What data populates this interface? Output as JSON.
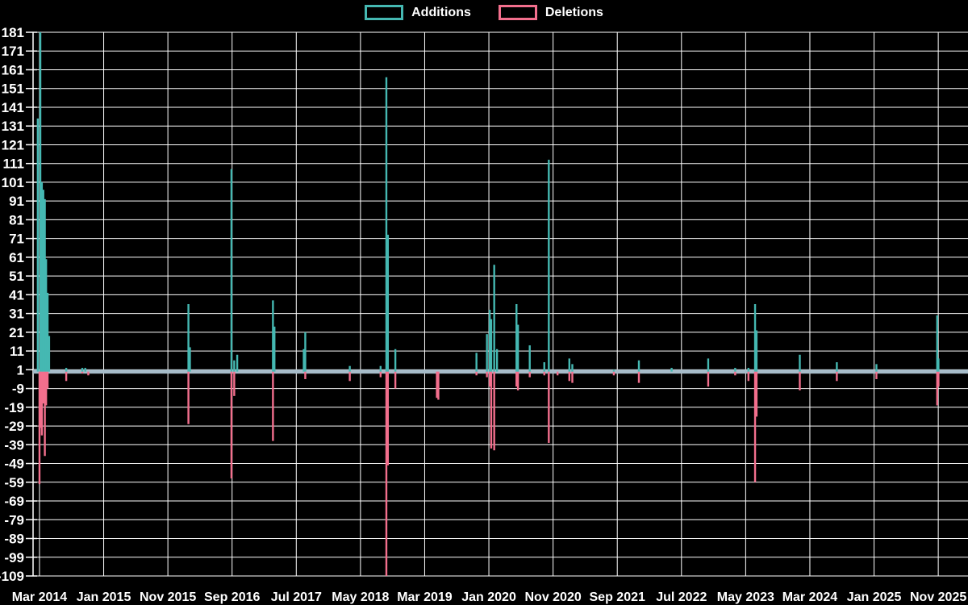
{
  "legend": {
    "items": [
      {
        "label": "Additions",
        "color": "#45b8b2"
      },
      {
        "label": "Deletions",
        "color": "#f36f8d"
      }
    ]
  },
  "colors": {
    "background": "#000000",
    "grid": "#ffffff",
    "additions": "#45b8b2",
    "deletions": "#f36f8d",
    "baseline_band": "#a6bcc9",
    "text": "#ffffff"
  },
  "chart_data": {
    "type": "line",
    "title": "",
    "xlabel": "",
    "ylabel": "",
    "grid": true,
    "legend_position": "top-center",
    "background": "#000000",
    "ylim": [
      -109,
      181
    ],
    "y_ticks": [
      181,
      171,
      161,
      151,
      141,
      131,
      121,
      111,
      101,
      91,
      81,
      71,
      61,
      51,
      41,
      31,
      21,
      11,
      1,
      -9,
      -19,
      -29,
      -39,
      -49,
      -59,
      -69,
      -79,
      -89,
      -99,
      -109
    ],
    "x_domain": [
      "2014-02-01",
      "2026-03-20"
    ],
    "x_ticks": [
      {
        "label": "Mar 2014",
        "date": "2014-03-01"
      },
      {
        "label": "Jan 2015",
        "date": "2015-01-01"
      },
      {
        "label": "Nov 2015",
        "date": "2015-11-01"
      },
      {
        "label": "Sep 2016",
        "date": "2016-09-01"
      },
      {
        "label": "Jul 2017",
        "date": "2017-07-01"
      },
      {
        "label": "May 2018",
        "date": "2018-05-01"
      },
      {
        "label": "Mar 2019",
        "date": "2019-03-01"
      },
      {
        "label": "Jan 2020",
        "date": "2020-01-01"
      },
      {
        "label": "Nov 2020",
        "date": "2020-11-01"
      },
      {
        "label": "Sep 2021",
        "date": "2021-09-01"
      },
      {
        "label": "Jul 2022",
        "date": "2022-07-01"
      },
      {
        "label": "May 2023",
        "date": "2023-05-01"
      },
      {
        "label": "Mar 2024",
        "date": "2024-03-01"
      },
      {
        "label": "Jan 2025",
        "date": "2025-01-01"
      },
      {
        "label": "Nov 2025",
        "date": "2025-11-01"
      }
    ],
    "baseline": 0,
    "series": [
      {
        "name": "Additions",
        "color": "#45b8b2",
        "points": [
          [
            "2014-02-23",
            135
          ],
          [
            "2014-03-05",
            181
          ],
          [
            "2014-03-12",
            101
          ],
          [
            "2014-03-19",
            97
          ],
          [
            "2014-03-26",
            92
          ],
          [
            "2014-04-02",
            60
          ],
          [
            "2014-04-09",
            42
          ],
          [
            "2014-04-16",
            19
          ],
          [
            "2014-07-06",
            2
          ],
          [
            "2014-09-21",
            2
          ],
          [
            "2014-10-05",
            2
          ],
          [
            "2016-02-07",
            36
          ],
          [
            "2016-02-14",
            13
          ],
          [
            "2016-08-28",
            108
          ],
          [
            "2016-09-11",
            6
          ],
          [
            "2016-09-25",
            9
          ],
          [
            "2017-03-12",
            38
          ],
          [
            "2017-03-19",
            24
          ],
          [
            "2017-08-06",
            12
          ],
          [
            "2017-08-13",
            21
          ],
          [
            "2018-03-11",
            3
          ],
          [
            "2018-08-05",
            3
          ],
          [
            "2018-09-02",
            157
          ],
          [
            "2018-09-09",
            73
          ],
          [
            "2018-10-14",
            12
          ],
          [
            "2019-11-03",
            10
          ],
          [
            "2019-12-22",
            20
          ],
          [
            "2020-01-05",
            33
          ],
          [
            "2020-01-12",
            28
          ],
          [
            "2020-01-26",
            57
          ],
          [
            "2020-02-09",
            12
          ],
          [
            "2020-05-10",
            36
          ],
          [
            "2020-05-17",
            25
          ],
          [
            "2020-07-12",
            14
          ],
          [
            "2020-09-20",
            5
          ],
          [
            "2020-10-11",
            113
          ],
          [
            "2021-01-17",
            7
          ],
          [
            "2021-01-31",
            4
          ],
          [
            "2021-08-15",
            1
          ],
          [
            "2021-12-12",
            6
          ],
          [
            "2022-05-15",
            2
          ],
          [
            "2022-11-06",
            7
          ],
          [
            "2023-03-12",
            2
          ],
          [
            "2023-05-14",
            2
          ],
          [
            "2023-06-15",
            36
          ],
          [
            "2023-06-22",
            22
          ],
          [
            "2024-01-14",
            9
          ],
          [
            "2024-07-07",
            5
          ],
          [
            "2025-01-12",
            4
          ],
          [
            "2025-10-26",
            30
          ],
          [
            "2025-11-02",
            7
          ]
        ]
      },
      {
        "name": "Deletions",
        "color": "#f36f8d",
        "points": [
          [
            "2014-03-01",
            -60
          ],
          [
            "2014-03-05",
            -30
          ],
          [
            "2014-03-12",
            -34
          ],
          [
            "2014-03-19",
            -17
          ],
          [
            "2014-03-26",
            -45
          ],
          [
            "2014-04-02",
            -18
          ],
          [
            "2014-04-09",
            -9
          ],
          [
            "2014-07-06",
            -5
          ],
          [
            "2014-09-21",
            -1
          ],
          [
            "2014-10-19",
            -2
          ],
          [
            "2016-02-07",
            -28
          ],
          [
            "2016-08-28",
            -57
          ],
          [
            "2016-09-11",
            -13
          ],
          [
            "2017-03-12",
            -37
          ],
          [
            "2017-08-13",
            -4
          ],
          [
            "2018-03-11",
            -5
          ],
          [
            "2018-08-05",
            -3
          ],
          [
            "2018-09-02",
            -109
          ],
          [
            "2018-09-09",
            -50
          ],
          [
            "2018-10-14",
            -9
          ],
          [
            "2019-04-28",
            -14
          ],
          [
            "2019-05-05",
            -15
          ],
          [
            "2019-11-03",
            -2
          ],
          [
            "2019-12-22",
            -3
          ],
          [
            "2020-01-05",
            -8
          ],
          [
            "2020-01-12",
            -41
          ],
          [
            "2020-01-26",
            -42
          ],
          [
            "2020-05-10",
            -8
          ],
          [
            "2020-05-17",
            -10
          ],
          [
            "2020-07-12",
            -3
          ],
          [
            "2020-09-20",
            -2
          ],
          [
            "2020-10-11",
            -38
          ],
          [
            "2020-11-22",
            -2
          ],
          [
            "2021-01-17",
            -5
          ],
          [
            "2021-01-31",
            -6
          ],
          [
            "2021-08-15",
            -2
          ],
          [
            "2021-12-12",
            -6
          ],
          [
            "2022-11-06",
            -8
          ],
          [
            "2023-03-12",
            -2
          ],
          [
            "2023-05-14",
            -5
          ],
          [
            "2023-06-15",
            -59
          ],
          [
            "2023-06-22",
            -24
          ],
          [
            "2024-01-14",
            -10
          ],
          [
            "2024-07-07",
            -5
          ],
          [
            "2025-01-12",
            -4
          ],
          [
            "2025-10-26",
            -18
          ],
          [
            "2025-11-02",
            -8
          ]
        ]
      }
    ]
  }
}
